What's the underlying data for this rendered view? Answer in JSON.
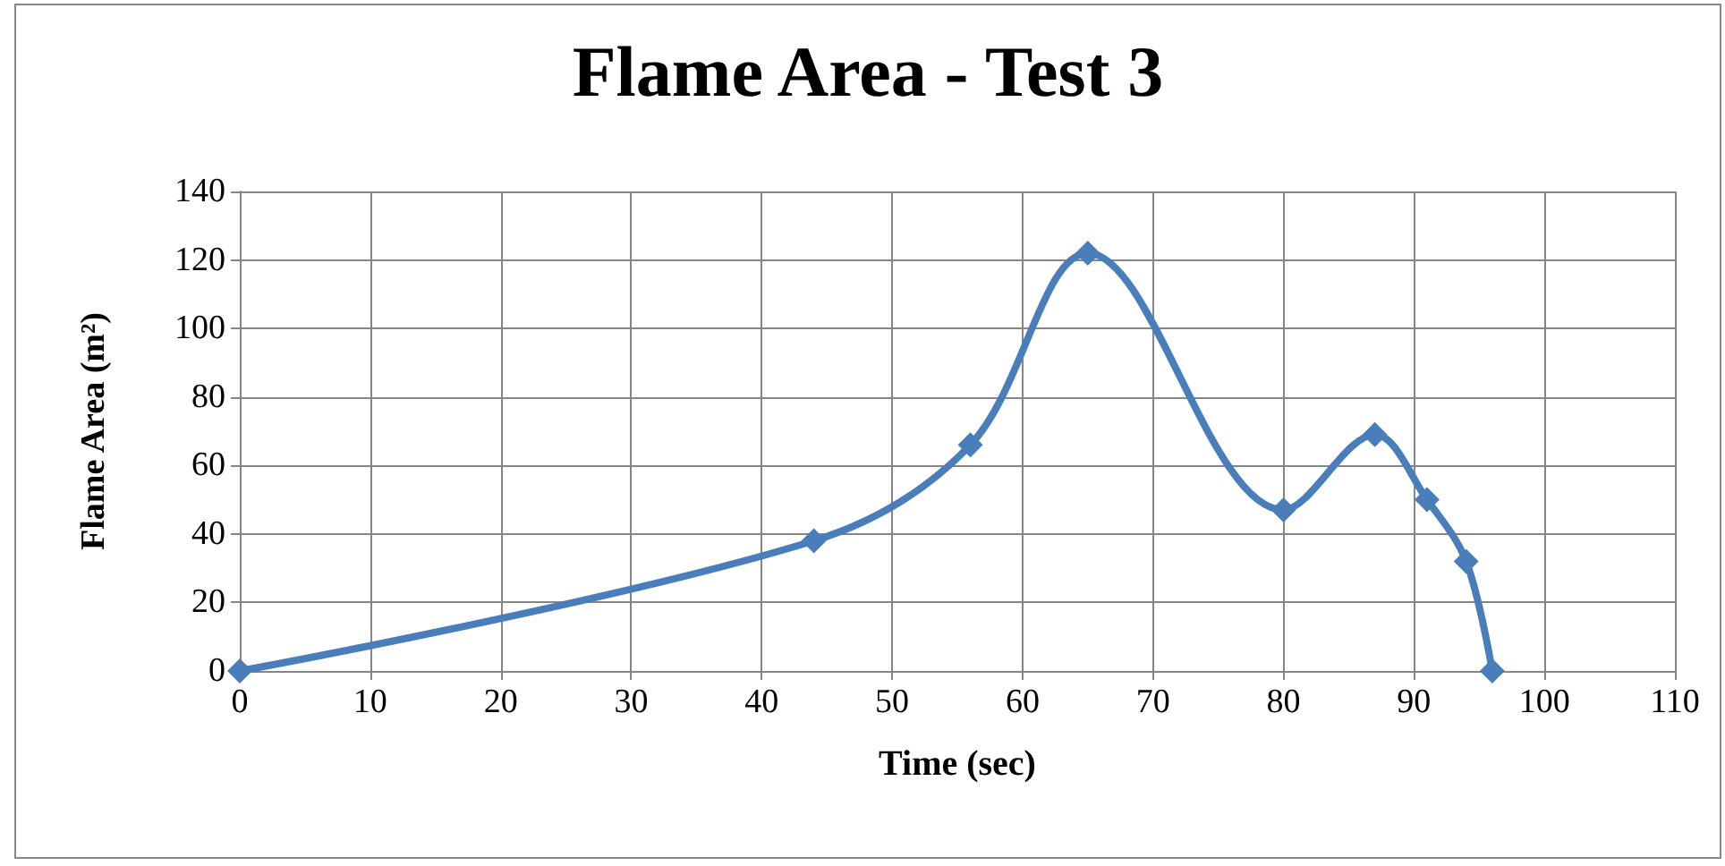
{
  "chart_data": {
    "type": "line",
    "title": "Flame Area - Test 3",
    "xlabel": "Time (sec)",
    "ylabel": "Flame Area (m²)",
    "x": [
      0,
      44,
      56,
      65,
      80,
      87,
      91,
      94,
      96
    ],
    "series": [
      {
        "color": "#4a7ebb",
        "values": [
          0,
          38,
          66,
          122,
          47,
          69,
          50,
          32,
          0
        ]
      }
    ],
    "xlim": [
      0,
      110
    ],
    "xticks": [
      0,
      10,
      20,
      30,
      40,
      50,
      60,
      70,
      80,
      90,
      100,
      110
    ],
    "ylim": [
      0,
      140
    ],
    "yticks": [
      0,
      20,
      40,
      60,
      80,
      100,
      120,
      140
    ],
    "grid": true,
    "marker": "diamond",
    "line_style": "solid"
  }
}
